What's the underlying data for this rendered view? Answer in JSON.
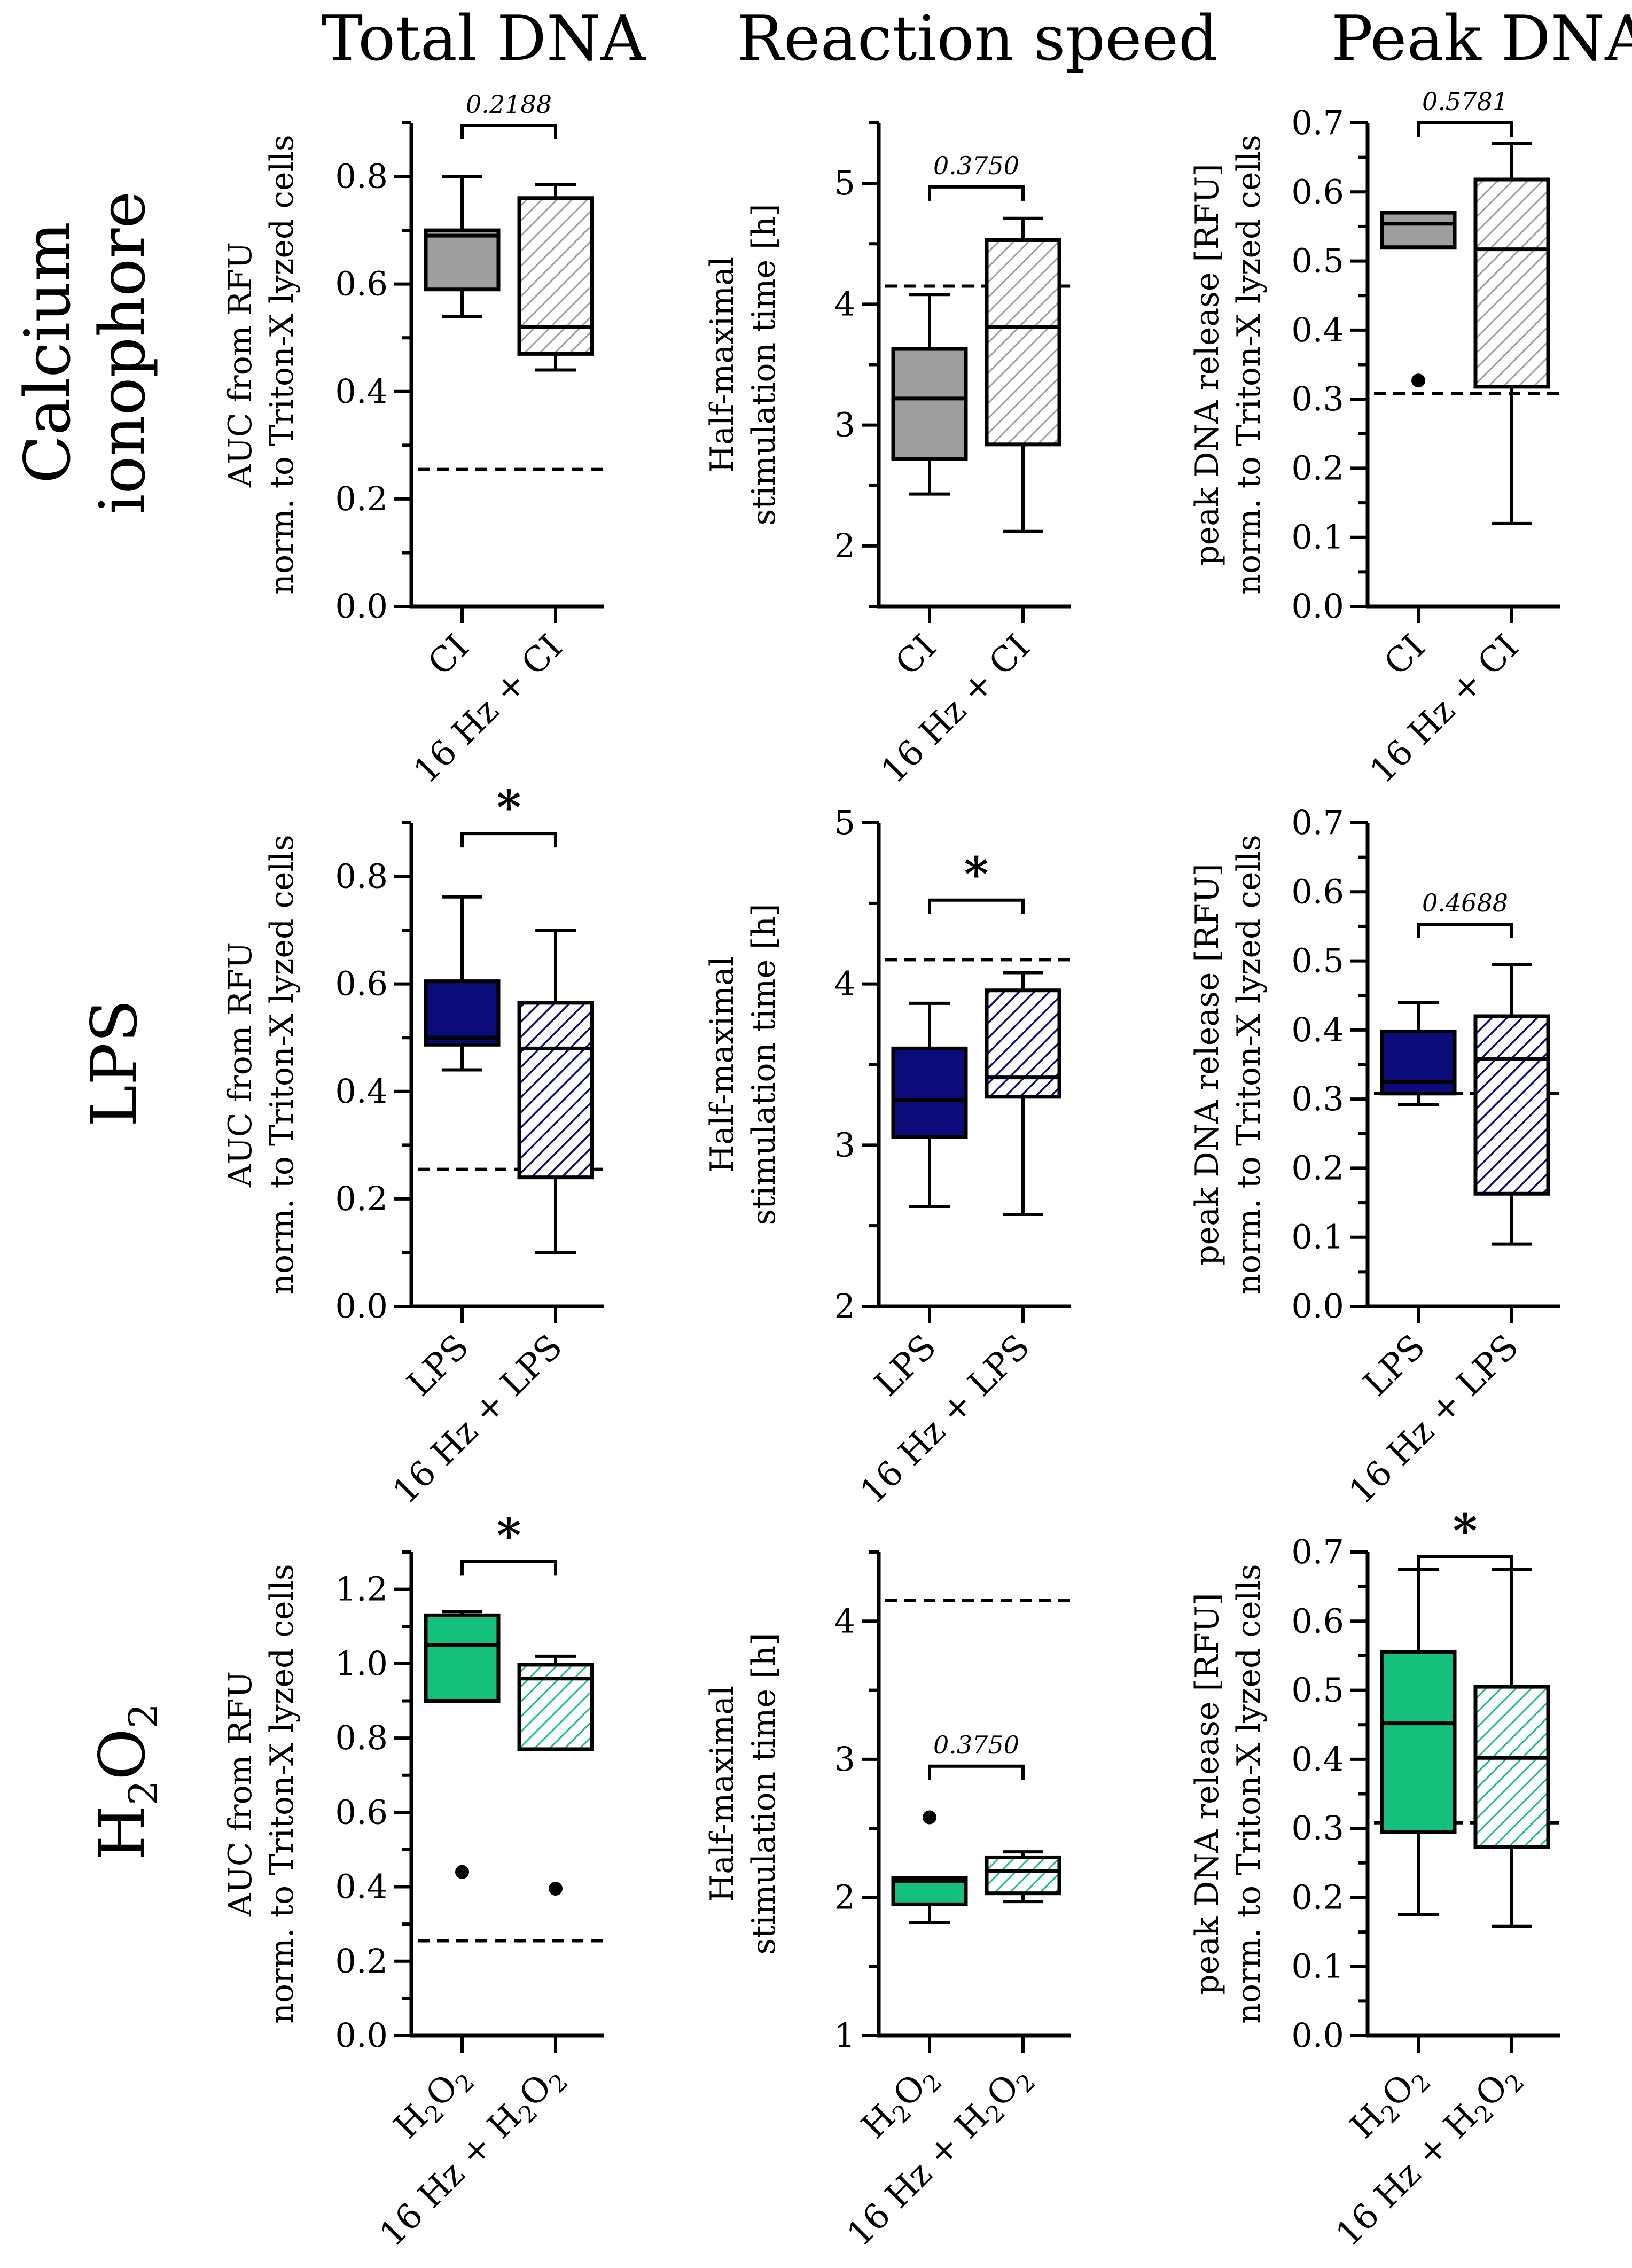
{
  "column_titles": [
    "Total DNA",
    "Reaction speed",
    "Peak DNA"
  ],
  "row_labels": [
    {
      "lines": [
        "Calcium",
        "ionophore"
      ]
    },
    {
      "lines": [
        "LPS"
      ]
    },
    {
      "main": "H",
      "sub1": "2",
      "mid": "O",
      "sub2": "2"
    }
  ],
  "colors": {
    "calcium": "#9e9e9e",
    "lps": "#0b0b7a",
    "h2o2": "#14c07c",
    "axis": "#000000"
  },
  "chart_data": [
    {
      "type": "box",
      "id": "ci-total",
      "row": 0,
      "col": 0,
      "ylabel_lines": [
        "AUC from RFU",
        "norm. to Triton-X lyzed cells"
      ],
      "ylim": [
        0.0,
        0.9
      ],
      "yticks": [
        0.0,
        0.2,
        0.4,
        0.6,
        0.8
      ],
      "ytick_labels": [
        "0.0",
        "0.2",
        "0.4",
        "0.6",
        "0.8"
      ],
      "minor_step": 0.1,
      "reference_line": 0.255,
      "color_key": "calcium",
      "categories": [
        "CI",
        "16 Hz + CI"
      ],
      "boxes": [
        {
          "min": 0.54,
          "q1": 0.59,
          "median": 0.69,
          "q3": 0.7,
          "max": 0.8,
          "outliers": [],
          "pattern": "solid"
        },
        {
          "min": 0.44,
          "q1": 0.47,
          "median": 0.52,
          "q3": 0.76,
          "max": 0.785,
          "outliers": [],
          "pattern": "hatched"
        }
      ],
      "significance": {
        "label": "0.2188",
        "style": "pvalue",
        "y": 0.895
      }
    },
    {
      "type": "box",
      "id": "ci-speed",
      "row": 0,
      "col": 1,
      "ylabel_lines": [
        "Half-maximal",
        "stimulation time [h]"
      ],
      "ylim": [
        1.5,
        5.5
      ],
      "yticks": [
        2,
        3,
        4,
        5
      ],
      "ytick_labels": [
        "2",
        "3",
        "4",
        "5"
      ],
      "minor_step": 0.5,
      "reference_line": 4.15,
      "color_key": "calcium",
      "categories": [
        "CI",
        "16 Hz + CI"
      ],
      "boxes": [
        {
          "min": 2.43,
          "q1": 2.72,
          "median": 3.22,
          "q3": 3.63,
          "max": 4.08,
          "outliers": [],
          "pattern": "solid"
        },
        {
          "min": 2.12,
          "q1": 2.84,
          "median": 3.81,
          "q3": 4.53,
          "max": 4.71,
          "outliers": [],
          "pattern": "hatched"
        }
      ],
      "significance": {
        "label": "0.3750",
        "style": "pvalue",
        "y": 4.97
      }
    },
    {
      "type": "box",
      "id": "ci-peak",
      "row": 0,
      "col": 2,
      "ylabel_lines": [
        "peak  DNA release [RFU]",
        "norm. to Triton-X lyzed cells"
      ],
      "ylim": [
        0.0,
        0.7
      ],
      "yticks": [
        0.0,
        0.1,
        0.2,
        0.3,
        0.4,
        0.5,
        0.6,
        0.7
      ],
      "ytick_labels": [
        "0.0",
        "0.1",
        "0.2",
        "0.3",
        "0.4",
        "0.5",
        "0.6",
        "0.7"
      ],
      "minor_step": 0.05,
      "reference_line": 0.308,
      "color_key": "calcium",
      "categories": [
        "CI",
        "16 Hz + CI"
      ],
      "boxes": [
        {
          "min": 0.52,
          "q1": 0.52,
          "median": 0.554,
          "q3": 0.57,
          "max": 0.57,
          "outliers": [
            0.327
          ],
          "pattern": "solid"
        },
        {
          "min": 0.12,
          "q1": 0.318,
          "median": 0.517,
          "q3": 0.618,
          "max": 0.67,
          "outliers": [],
          "pattern": "hatched"
        }
      ],
      "significance": {
        "label": "0.5781",
        "style": "pvalue",
        "y": 0.7
      }
    },
    {
      "type": "box",
      "id": "lps-total",
      "row": 1,
      "col": 0,
      "ylabel_lines": [
        "AUC from RFU",
        "norm. to Triton-X lyzed cells"
      ],
      "ylim": [
        0.0,
        0.9
      ],
      "yticks": [
        0.0,
        0.2,
        0.4,
        0.6,
        0.8
      ],
      "ytick_labels": [
        "0.0",
        "0.2",
        "0.4",
        "0.6",
        "0.8"
      ],
      "minor_step": 0.1,
      "reference_line": 0.255,
      "color_key": "lps",
      "categories": [
        "LPS",
        "16 Hz + LPS"
      ],
      "boxes": [
        {
          "min": 0.44,
          "q1": 0.487,
          "median": 0.5,
          "q3": 0.605,
          "max": 0.762,
          "outliers": [],
          "pattern": "solid"
        },
        {
          "min": 0.1,
          "q1": 0.24,
          "median": 0.48,
          "q3": 0.565,
          "max": 0.7,
          "outliers": [],
          "pattern": "hatched"
        }
      ],
      "significance": {
        "label": "*",
        "style": "star",
        "y": 0.88
      }
    },
    {
      "type": "box",
      "id": "lps-speed",
      "row": 1,
      "col": 1,
      "ylabel_lines": [
        "Half-maximal",
        "stimulation time [h]"
      ],
      "ylim": [
        2,
        5
      ],
      "yticks": [
        2,
        3,
        4,
        5
      ],
      "ytick_labels": [
        "2",
        "3",
        "4",
        "5"
      ],
      "minor_step": 0.5,
      "reference_line": 4.15,
      "color_key": "lps",
      "categories": [
        "LPS",
        "16 Hz + LPS"
      ],
      "boxes": [
        {
          "min": 2.62,
          "q1": 3.05,
          "median": 3.28,
          "q3": 3.6,
          "max": 3.88,
          "outliers": [],
          "pattern": "solid"
        },
        {
          "min": 2.57,
          "q1": 3.3,
          "median": 3.42,
          "q3": 3.96,
          "max": 4.07,
          "outliers": [],
          "pattern": "hatched"
        }
      ],
      "significance": {
        "label": "*",
        "style": "star",
        "y": 4.52
      }
    },
    {
      "type": "box",
      "id": "lps-peak",
      "row": 1,
      "col": 2,
      "ylabel_lines": [
        "peak  DNA release [RFU]",
        "norm. to Triton-X lyzed cells"
      ],
      "ylim": [
        0.0,
        0.7
      ],
      "yticks": [
        0.0,
        0.1,
        0.2,
        0.3,
        0.4,
        0.5,
        0.6,
        0.7
      ],
      "ytick_labels": [
        "0.0",
        "0.1",
        "0.2",
        "0.3",
        "0.4",
        "0.5",
        "0.6",
        "0.7"
      ],
      "minor_step": 0.05,
      "reference_line": 0.308,
      "color_key": "lps",
      "categories": [
        "LPS",
        "16 Hz + LPS"
      ],
      "boxes": [
        {
          "min": 0.292,
          "q1": 0.308,
          "median": 0.325,
          "q3": 0.398,
          "max": 0.44,
          "outliers": [],
          "pattern": "solid"
        },
        {
          "min": 0.09,
          "q1": 0.163,
          "median": 0.358,
          "q3": 0.42,
          "max": 0.495,
          "outliers": [],
          "pattern": "hatched"
        }
      ],
      "significance": {
        "label": "0.4688",
        "style": "pvalue",
        "y": 0.553
      }
    },
    {
      "type": "box",
      "id": "h2o2-total",
      "row": 2,
      "col": 0,
      "ylabel_lines": [
        "AUC from RFU",
        "norm. to Triton-X lyzed cells"
      ],
      "ylim": [
        0.0,
        1.3
      ],
      "yticks": [
        0.0,
        0.2,
        0.4,
        0.6,
        0.8,
        1.0,
        1.2
      ],
      "ytick_labels": [
        "0.0",
        "0.2",
        "0.4",
        "0.6",
        "0.8",
        "1.0",
        "1.2"
      ],
      "minor_step": 0.1,
      "reference_line": 0.255,
      "color_key": "h2o2",
      "categories": [
        "H2O2",
        "16 Hz + H2O2"
      ],
      "boxes": [
        {
          "min": 0.9,
          "q1": 0.9,
          "median": 1.05,
          "q3": 1.13,
          "max": 1.14,
          "outliers": [
            0.44
          ],
          "pattern": "solid"
        },
        {
          "min": 0.77,
          "q1": 0.77,
          "median": 0.96,
          "q3": 0.997,
          "max": 1.02,
          "outliers": [
            0.395
          ],
          "pattern": "hatched"
        }
      ],
      "significance": {
        "label": "*",
        "style": "star",
        "y": 1.275
      }
    },
    {
      "type": "box",
      "id": "h2o2-speed",
      "row": 2,
      "col": 1,
      "ylabel_lines": [
        "Half-maximal",
        "stimulation time [h]"
      ],
      "ylim": [
        1,
        4.5
      ],
      "yticks": [
        1,
        2,
        3,
        4
      ],
      "ytick_labels": [
        "1",
        "2",
        "3",
        "4"
      ],
      "minor_step": 0.5,
      "reference_line": 4.15,
      "color_key": "h2o2",
      "categories": [
        "H2O2",
        "16 Hz + H2O2"
      ],
      "boxes": [
        {
          "min": 1.82,
          "q1": 1.95,
          "median": 2.12,
          "q3": 2.14,
          "max": 2.14,
          "outliers": [
            2.58
          ],
          "pattern": "solid"
        },
        {
          "min": 1.97,
          "q1": 2.03,
          "median": 2.19,
          "q3": 2.29,
          "max": 2.33,
          "outliers": [],
          "pattern": "hatched"
        }
      ],
      "significance": {
        "label": "0.3750",
        "style": "pvalue",
        "y": 2.95
      }
    },
    {
      "type": "box",
      "id": "h2o2-peak",
      "row": 2,
      "col": 2,
      "ylabel_lines": [
        "peak  DNA release [RFU]",
        "norm. to Triton-X lyzed cells"
      ],
      "ylim": [
        0.0,
        0.7
      ],
      "yticks": [
        0.0,
        0.1,
        0.2,
        0.3,
        0.4,
        0.5,
        0.6,
        0.7
      ],
      "ytick_labels": [
        "0.0",
        "0.1",
        "0.2",
        "0.3",
        "0.4",
        "0.5",
        "0.6",
        "0.7"
      ],
      "minor_step": 0.05,
      "reference_line": 0.308,
      "color_key": "h2o2",
      "categories": [
        "H2O2",
        "16 Hz + H2O2"
      ],
      "boxes": [
        {
          "min": 0.175,
          "q1": 0.295,
          "median": 0.452,
          "q3": 0.555,
          "max": 0.675,
          "outliers": [],
          "pattern": "solid"
        },
        {
          "min": 0.158,
          "q1": 0.273,
          "median": 0.402,
          "q3": 0.505,
          "max": 0.675,
          "outliers": [],
          "pattern": "hatched"
        }
      ],
      "significance": {
        "label": "*",
        "style": "star",
        "y": 0.693
      }
    }
  ]
}
